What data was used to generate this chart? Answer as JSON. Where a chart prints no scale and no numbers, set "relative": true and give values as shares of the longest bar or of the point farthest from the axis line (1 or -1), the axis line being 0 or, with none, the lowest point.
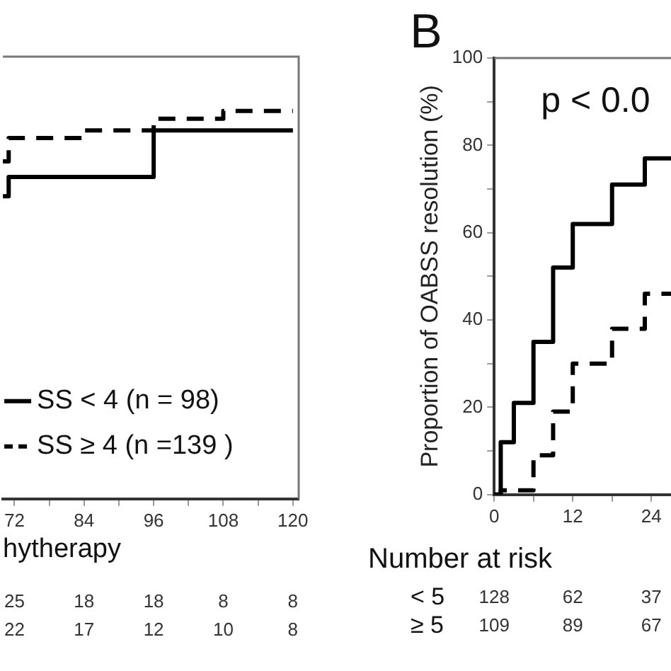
{
  "chart_data": [
    {
      "type": "step",
      "relative": true,
      "xlabel": "hytherapy",
      "legend": "bottom left",
      "xlim": [
        70,
        121
      ],
      "xticks": [
        72,
        {
          "value": 78,
          "label": null
        },
        84,
        {
          "value": 90,
          "label": null
        },
        96,
        {
          "value": 102,
          "label": null
        },
        108,
        {
          "value": 114,
          "label": null
        },
        120
      ],
      "series": [
        {
          "name": "SS < 4 (n = 98)",
          "color": "#000000",
          "line_style": "solid",
          "x": [
            70,
            71,
            96,
            120
          ],
          "values": [
            0.78,
            0.83,
            0.95,
            0.95
          ]
        },
        {
          "name": "SS ≥ 4 (n =139 )",
          "color": "#000000",
          "line_style": "dashed",
          "x": [
            70,
            71,
            84,
            96,
            108,
            120
          ],
          "values": [
            0.87,
            0.93,
            0.95,
            0.98,
            1,
            1
          ]
        }
      ],
      "annotations": [
        "25",
        "18",
        "18",
        "8",
        "8",
        "22",
        "17",
        "12",
        "10",
        "8"
      ]
    },
    {
      "type": "step",
      "title": "B",
      "ylabel": "Proportion of OABSS resolution (%)",
      "xlim": [
        0,
        27
      ],
      "ylim": [
        0,
        100
      ],
      "xticks": [
        0,
        {
          "value": 6,
          "label": null
        },
        12,
        {
          "value": 18,
          "label": null
        },
        24
      ],
      "yticks": [
        0,
        {
          "value": 10,
          "label": null
        },
        20,
        {
          "value": 30,
          "label": null
        },
        40,
        {
          "value": 50,
          "label": null
        },
        60,
        {
          "value": 70,
          "label": null
        },
        80,
        {
          "value": 90,
          "label": null
        },
        100
      ],
      "series": [
        {
          "color": "#000000",
          "line_style": "solid",
          "x": [
            0,
            1,
            3,
            6,
            9,
            12,
            18,
            23,
            27
          ],
          "values": [
            0,
            12,
            21,
            35,
            52,
            62,
            71,
            77,
            77
          ]
        },
        {
          "color": "#000000",
          "line_style": "dashed",
          "x": [
            0,
            1,
            6,
            9,
            12,
            18,
            23,
            27
          ],
          "values": [
            0,
            1,
            9,
            19,
            30,
            38,
            46,
            46
          ]
        }
      ],
      "annotations": [
        "p < 0.0",
        "Number at risk",
        "< 5",
        "128",
        "62",
        "37",
        "≥ 5",
        "109",
        "89",
        "67"
      ]
    }
  ]
}
